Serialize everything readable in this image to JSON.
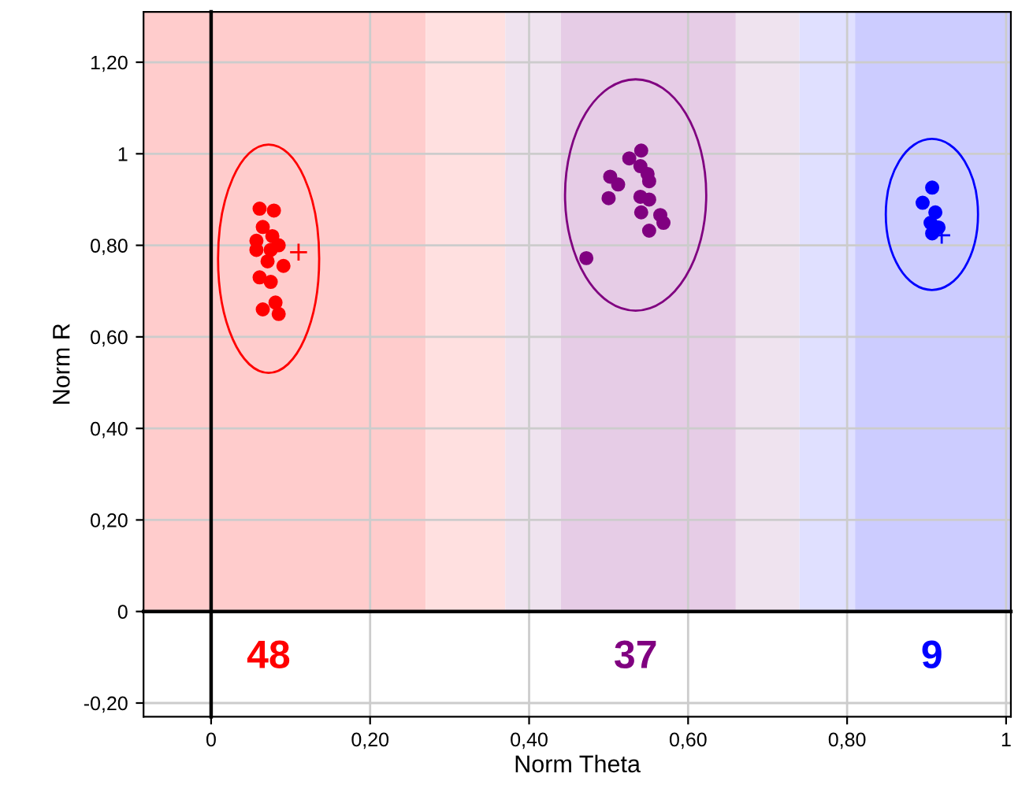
{
  "chart_data": {
    "type": "scatter",
    "xlabel": "Norm Theta",
    "ylabel": "Norm R",
    "xlim": [
      -0.085,
      1.006
    ],
    "ylim": [
      -0.23,
      1.31
    ],
    "xticks": [
      0,
      {
        "value": 0.2,
        "label": "0,20"
      },
      {
        "value": 0.4,
        "label": "0,40"
      },
      {
        "value": 0.6,
        "label": "0,60"
      },
      {
        "value": 0.8,
        "label": "0,80"
      },
      1
    ],
    "yticks": [
      {
        "value": -0.2,
        "label": "-0,20"
      },
      0,
      {
        "value": 0.2,
        "label": "0,20"
      },
      {
        "value": 0.4,
        "label": "0,40"
      },
      {
        "value": 0.6,
        "label": "0,60"
      },
      {
        "value": 0.8,
        "label": "0,80"
      },
      1,
      {
        "value": 1.2,
        "label": "1,20"
      }
    ],
    "grid": true,
    "legend": false,
    "series": [
      {
        "color": "#ff0000",
        "marker": "circle",
        "x": [
          0.061,
          0.079,
          0.065,
          0.057,
          0.077,
          0.057,
          0.075,
          0.085,
          0.091,
          0.061,
          0.075,
          0.065,
          0.081,
          0.085,
          0.071
        ],
        "values": [
          0.88,
          0.876,
          0.84,
          0.81,
          0.82,
          0.79,
          0.79,
          0.8,
          0.755,
          0.73,
          0.72,
          0.66,
          0.675,
          0.65,
          0.765
        ]
      },
      {
        "color": "#800080",
        "marker": "circle",
        "x": [
          0.541,
          0.526,
          0.54,
          0.549,
          0.502,
          0.512,
          0.551,
          0.5,
          0.54,
          0.551,
          0.541,
          0.565,
          0.569,
          0.551,
          0.472
        ],
        "values": [
          1.007,
          0.99,
          0.973,
          0.956,
          0.95,
          0.933,
          0.94,
          0.903,
          0.906,
          0.9,
          0.872,
          0.866,
          0.849,
          0.832,
          0.772
        ]
      },
      {
        "color": "#0000ff",
        "marker": "circle",
        "x": [
          0.907,
          0.895,
          0.911,
          0.905,
          0.915,
          0.907
        ],
        "values": [
          0.926,
          0.893,
          0.872,
          0.849,
          0.839,
          0.826
        ]
      },
      {
        "color": "#ff0000",
        "marker": "cross",
        "x": [
          0.11
        ],
        "values": [
          0.785
        ]
      },
      {
        "color": "#0000ff",
        "marker": "cross",
        "x": [
          0.919
        ],
        "values": [
          0.822
        ]
      }
    ],
    "bands": [
      {
        "axis": "x",
        "from": -0.085,
        "to": 0.27,
        "color": "#ffcccc"
      },
      {
        "axis": "x",
        "from": 0.27,
        "to": 0.37,
        "color": "#ffe0e0"
      },
      {
        "axis": "x",
        "from": 0.37,
        "to": 0.44,
        "color": "#efe3ef"
      },
      {
        "axis": "x",
        "from": 0.44,
        "to": 0.66,
        "color": "#e6cce6"
      },
      {
        "axis": "x",
        "from": 0.66,
        "to": 0.74,
        "color": "#efe3ef"
      },
      {
        "axis": "x",
        "from": 0.74,
        "to": 0.81,
        "color": "#e0e0ff"
      },
      {
        "axis": "x",
        "from": 0.81,
        "to": 1.006,
        "color": "#ccccff"
      }
    ],
    "annotations": [
      "48",
      "37",
      "9"
    ]
  }
}
